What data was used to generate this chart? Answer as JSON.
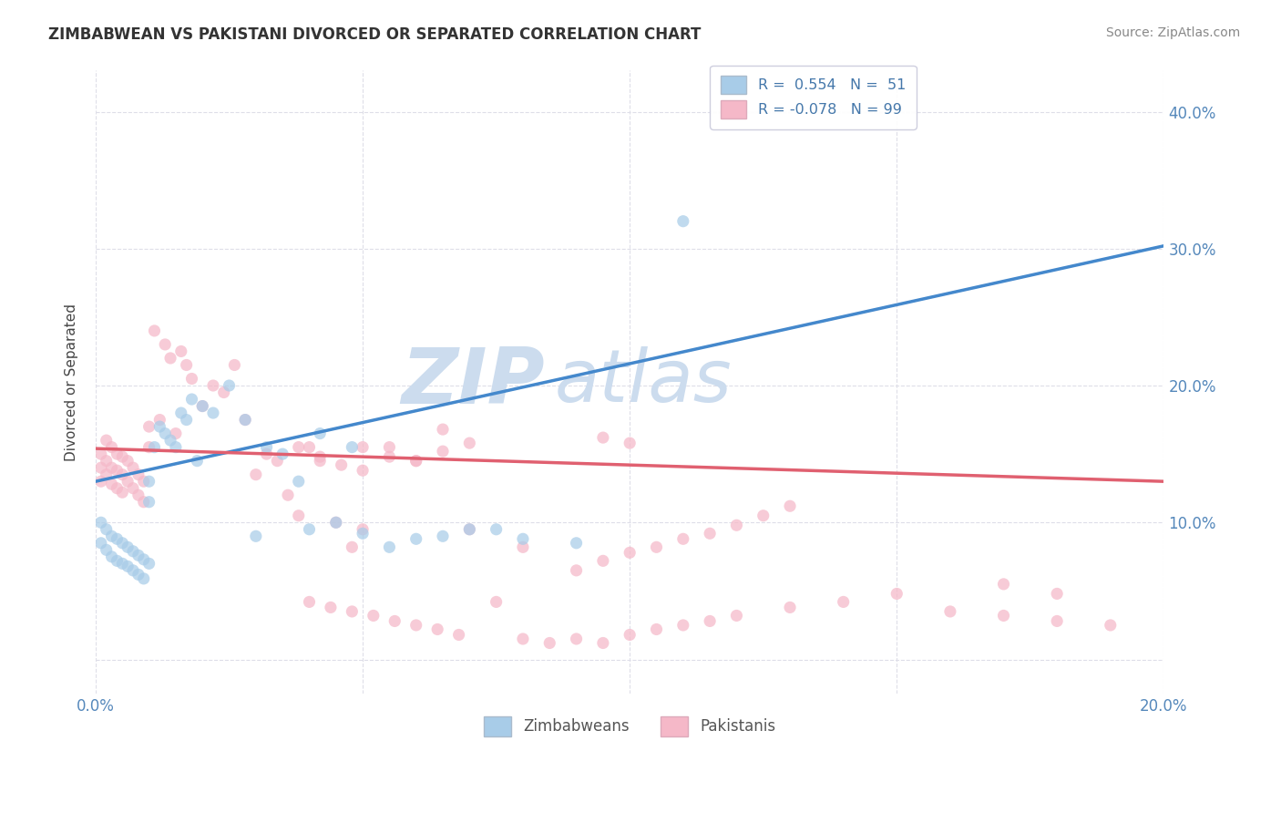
{
  "title": "ZIMBABWEAN VS PAKISTANI DIVORCED OR SEPARATED CORRELATION CHART",
  "source": "Source: ZipAtlas.com",
  "ylabel": "Divorced or Separated",
  "xlim": [
    0.0,
    0.2
  ],
  "ylim": [
    -0.025,
    0.43
  ],
  "xtick_positions": [
    0.0,
    0.05,
    0.1,
    0.15,
    0.2
  ],
  "xtick_labels": [
    "0.0%",
    "",
    "",
    "",
    "20.0%"
  ],
  "ytick_positions": [
    0.1,
    0.2,
    0.3,
    0.4
  ],
  "ytick_labels_right": [
    "10.0%",
    "20.0%",
    "30.0%",
    "40.0%"
  ],
  "blue_scatter_color": "#a8cce8",
  "pink_scatter_color": "#f5b8c8",
  "blue_line_color": "#4488cc",
  "blue_dash_color": "#aaccee",
  "pink_line_color": "#e06070",
  "watermark_color": "#ccdcee",
  "background_color": "#ffffff",
  "grid_color": "#dedee8",
  "title_color": "#333333",
  "source_color": "#888888",
  "axis_tick_color": "#5588bb",
  "ylabel_color": "#444444",
  "bottom_legend_label_color": "#555555",
  "blue_line_x0": 0.0,
  "blue_line_y0": 0.13,
  "blue_line_x1": 0.2,
  "blue_line_y1": 0.302,
  "pink_line_x0": 0.0,
  "pink_line_y0": 0.154,
  "pink_line_x1": 0.2,
  "pink_line_y1": 0.13,
  "zimbabwean_x": [
    0.001,
    0.001,
    0.002,
    0.002,
    0.003,
    0.003,
    0.004,
    0.004,
    0.005,
    0.005,
    0.006,
    0.006,
    0.007,
    0.007,
    0.008,
    0.008,
    0.009,
    0.009,
    0.01,
    0.01,
    0.01,
    0.011,
    0.012,
    0.013,
    0.014,
    0.015,
    0.016,
    0.017,
    0.018,
    0.019,
    0.02,
    0.022,
    0.025,
    0.028,
    0.03,
    0.032,
    0.035,
    0.038,
    0.04,
    0.042,
    0.045,
    0.048,
    0.05,
    0.055,
    0.06,
    0.065,
    0.07,
    0.075,
    0.08,
    0.09,
    0.11
  ],
  "zimbabwean_y": [
    0.1,
    0.085,
    0.095,
    0.08,
    0.09,
    0.075,
    0.088,
    0.072,
    0.085,
    0.07,
    0.082,
    0.068,
    0.079,
    0.065,
    0.076,
    0.062,
    0.073,
    0.059,
    0.13,
    0.115,
    0.07,
    0.155,
    0.17,
    0.165,
    0.16,
    0.155,
    0.18,
    0.175,
    0.19,
    0.145,
    0.185,
    0.18,
    0.2,
    0.175,
    0.09,
    0.155,
    0.15,
    0.13,
    0.095,
    0.165,
    0.1,
    0.155,
    0.092,
    0.082,
    0.088,
    0.09,
    0.095,
    0.095,
    0.088,
    0.085,
    0.32
  ],
  "pakistani_x": [
    0.001,
    0.001,
    0.001,
    0.002,
    0.002,
    0.002,
    0.003,
    0.003,
    0.003,
    0.004,
    0.004,
    0.004,
    0.005,
    0.005,
    0.005,
    0.006,
    0.006,
    0.007,
    0.007,
    0.008,
    0.008,
    0.009,
    0.009,
    0.01,
    0.01,
    0.011,
    0.012,
    0.013,
    0.014,
    0.015,
    0.016,
    0.017,
    0.018,
    0.02,
    0.022,
    0.024,
    0.026,
    0.028,
    0.03,
    0.032,
    0.034,
    0.036,
    0.038,
    0.04,
    0.042,
    0.045,
    0.048,
    0.05,
    0.055,
    0.06,
    0.065,
    0.07,
    0.08,
    0.09,
    0.095,
    0.1,
    0.105,
    0.11,
    0.115,
    0.12,
    0.125,
    0.13,
    0.095,
    0.1,
    0.05,
    0.055,
    0.06,
    0.065,
    0.07,
    0.075,
    0.038,
    0.042,
    0.046,
    0.05,
    0.04,
    0.044,
    0.048,
    0.052,
    0.056,
    0.06,
    0.064,
    0.068,
    0.08,
    0.085,
    0.09,
    0.095,
    0.1,
    0.105,
    0.11,
    0.115,
    0.12,
    0.13,
    0.14,
    0.15,
    0.16,
    0.17,
    0.18,
    0.19,
    0.17,
    0.18
  ],
  "pakistani_y": [
    0.15,
    0.14,
    0.13,
    0.16,
    0.145,
    0.135,
    0.155,
    0.14,
    0.128,
    0.15,
    0.138,
    0.125,
    0.148,
    0.135,
    0.122,
    0.145,
    0.13,
    0.14,
    0.125,
    0.135,
    0.12,
    0.13,
    0.115,
    0.17,
    0.155,
    0.24,
    0.175,
    0.23,
    0.22,
    0.165,
    0.225,
    0.215,
    0.205,
    0.185,
    0.2,
    0.195,
    0.215,
    0.175,
    0.135,
    0.15,
    0.145,
    0.12,
    0.105,
    0.155,
    0.145,
    0.1,
    0.082,
    0.095,
    0.155,
    0.145,
    0.168,
    0.095,
    0.082,
    0.065,
    0.072,
    0.078,
    0.082,
    0.088,
    0.092,
    0.098,
    0.105,
    0.112,
    0.162,
    0.158,
    0.155,
    0.148,
    0.145,
    0.152,
    0.158,
    0.042,
    0.155,
    0.148,
    0.142,
    0.138,
    0.042,
    0.038,
    0.035,
    0.032,
    0.028,
    0.025,
    0.022,
    0.018,
    0.015,
    0.012,
    0.015,
    0.012,
    0.018,
    0.022,
    0.025,
    0.028,
    0.032,
    0.038,
    0.042,
    0.048,
    0.035,
    0.032,
    0.028,
    0.025,
    0.055,
    0.048
  ]
}
